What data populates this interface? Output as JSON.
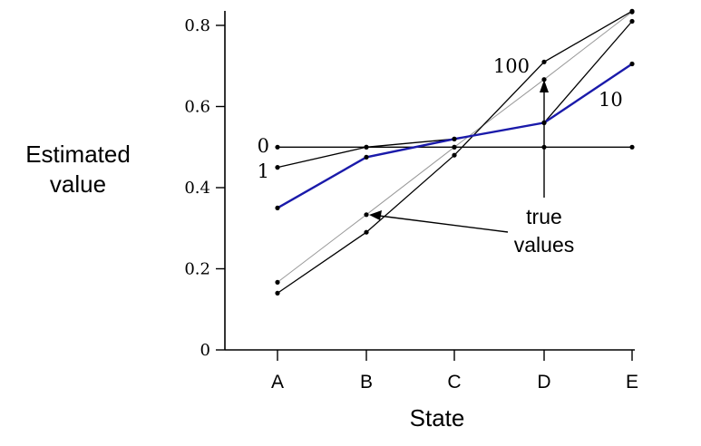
{
  "chart_data": {
    "type": "line",
    "title": "",
    "xlabel": "State",
    "ylabel_lines": [
      "Estimated",
      "value"
    ],
    "categories": [
      "A",
      "B",
      "C",
      "D",
      "E"
    ],
    "yticks": [
      "0",
      "0.2",
      "0.4",
      "0.6",
      "0.8"
    ],
    "ytick_values": [
      0,
      0.2,
      0.4,
      0.6,
      0.8
    ],
    "ylim": [
      0,
      0.8
    ],
    "grid": false,
    "series": [
      {
        "name": "0",
        "values": [
          0.5,
          0.5,
          0.5,
          0.5,
          0.5
        ],
        "color": "#000000"
      },
      {
        "name": "1",
        "values": [
          0.45,
          0.5,
          0.52,
          0.56,
          0.81
        ],
        "color": "#000000"
      },
      {
        "name": "10",
        "values": [
          0.35,
          0.475,
          0.52,
          0.56,
          0.705
        ],
        "color": "#1a1aaa"
      },
      {
        "name": "100",
        "values": [
          0.14,
          0.29,
          0.48,
          0.71,
          0.835
        ],
        "color": "#000000"
      },
      {
        "name": "true values",
        "values": [
          0.1667,
          0.3333,
          0.5,
          0.6667,
          0.8333
        ],
        "color": "#999999"
      }
    ],
    "annotation": {
      "lines": [
        "true",
        "values"
      ]
    }
  }
}
